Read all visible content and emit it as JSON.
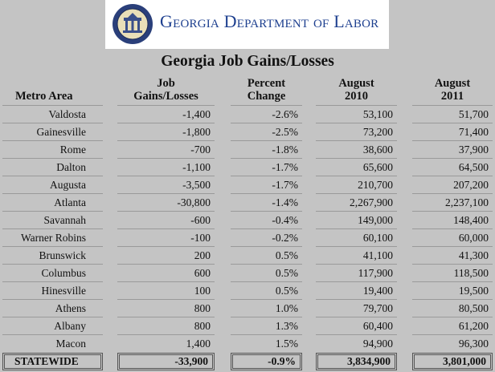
{
  "banner": {
    "org_name": "Georgia Department of Labor",
    "seal_text": "STATE OF GEORGIA 1776"
  },
  "table": {
    "title": "Georgia Job Gains/Losses",
    "headers": {
      "metro": "Metro Area",
      "gains_line1": "Job",
      "gains_line2": "Gains/Losses",
      "pct_line1": "Percent",
      "pct_line2": "Change",
      "aug2010_line1": "August",
      "aug2010_line2": "2010",
      "aug2011_line1": "August",
      "aug2011_line2": "2011"
    },
    "rows": [
      {
        "metro": "Valdosta",
        "gains": "-1,400",
        "pct": "-2.6%",
        "aug2010": "53,100",
        "aug2011": "51,700"
      },
      {
        "metro": "Gainesville",
        "gains": "-1,800",
        "pct": "-2.5%",
        "aug2010": "73,200",
        "aug2011": "71,400"
      },
      {
        "metro": "Rome",
        "gains": "-700",
        "pct": "-1.8%",
        "aug2010": "38,600",
        "aug2011": "37,900"
      },
      {
        "metro": "Dalton",
        "gains": "-1,100",
        "pct": "-1.7%",
        "aug2010": "65,600",
        "aug2011": "64,500"
      },
      {
        "metro": "Augusta",
        "gains": "-3,500",
        "pct": "-1.7%",
        "aug2010": "210,700",
        "aug2011": "207,200"
      },
      {
        "metro": "Atlanta",
        "gains": "-30,800",
        "pct": "-1.4%",
        "aug2010": "2,267,900",
        "aug2011": "2,237,100"
      },
      {
        "metro": "Savannah",
        "gains": "-600",
        "pct": "-0.4%",
        "aug2010": "149,000",
        "aug2011": "148,400"
      },
      {
        "metro": "Warner Robins",
        "gains": "-100",
        "pct": "-0.2%",
        "aug2010": "60,100",
        "aug2011": "60,000"
      },
      {
        "metro": "Brunswick",
        "gains": "200",
        "pct": "0.5%",
        "aug2010": "41,100",
        "aug2011": "41,300"
      },
      {
        "metro": "Columbus",
        "gains": "600",
        "pct": "0.5%",
        "aug2010": "117,900",
        "aug2011": "118,500"
      },
      {
        "metro": "Hinesville",
        "gains": "100",
        "pct": "0.5%",
        "aug2010": "19,400",
        "aug2011": "19,500"
      },
      {
        "metro": "Athens",
        "gains": "800",
        "pct": "1.0%",
        "aug2010": "79,700",
        "aug2011": "80,500"
      },
      {
        "metro": "Albany",
        "gains": "800",
        "pct": "1.3%",
        "aug2010": "60,400",
        "aug2011": "61,200"
      },
      {
        "metro": "Macon",
        "gains": "1,400",
        "pct": "1.5%",
        "aug2010": "94,900",
        "aug2011": "96,300"
      }
    ],
    "total": {
      "metro": "STATEWIDE",
      "gains": "-33,900",
      "pct": "-0.9%",
      "aug2010": "3,834,900",
      "aug2011": "3,801,000"
    }
  },
  "colors": {
    "background": "#c4c4c4",
    "banner_text": "#1d3f8f",
    "seal": "#2a3f7a"
  }
}
